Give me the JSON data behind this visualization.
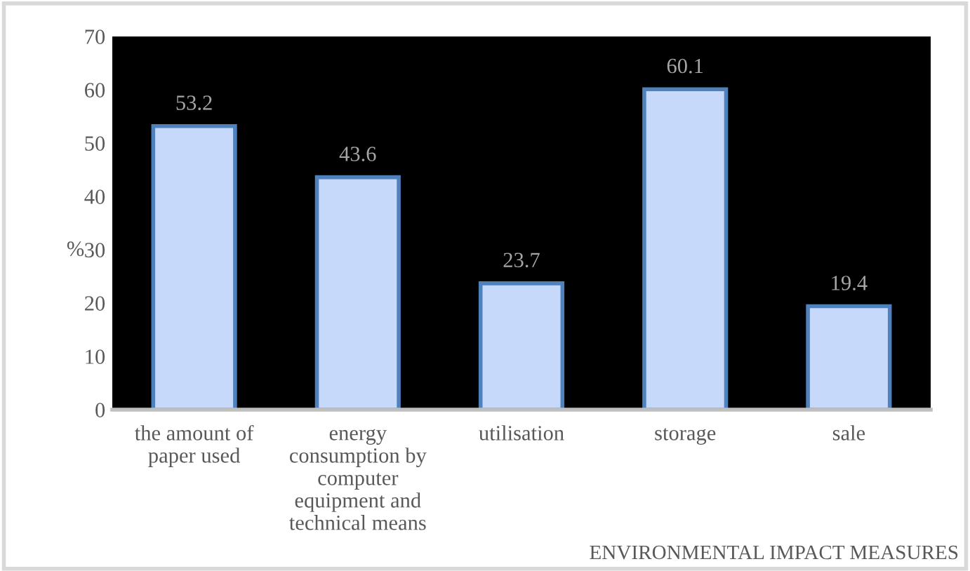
{
  "chart_data": {
    "type": "bar",
    "categories": [
      "the amount of paper used",
      "energy consumption by computer equipment and technical means",
      "utilisation",
      "storage",
      "sale"
    ],
    "values": [
      53.2,
      43.6,
      23.7,
      60.1,
      19.4
    ],
    "color": "#c6d9fb",
    "ylim": [
      0,
      70
    ],
    "yticks": [
      0,
      10,
      20,
      30,
      40,
      50,
      60,
      70
    ],
    "ylabel": "%",
    "xlabel": "ENVIRONMENTAL IMPACT MEASURES",
    "data_labels": true,
    "grid": false,
    "legend": false
  }
}
